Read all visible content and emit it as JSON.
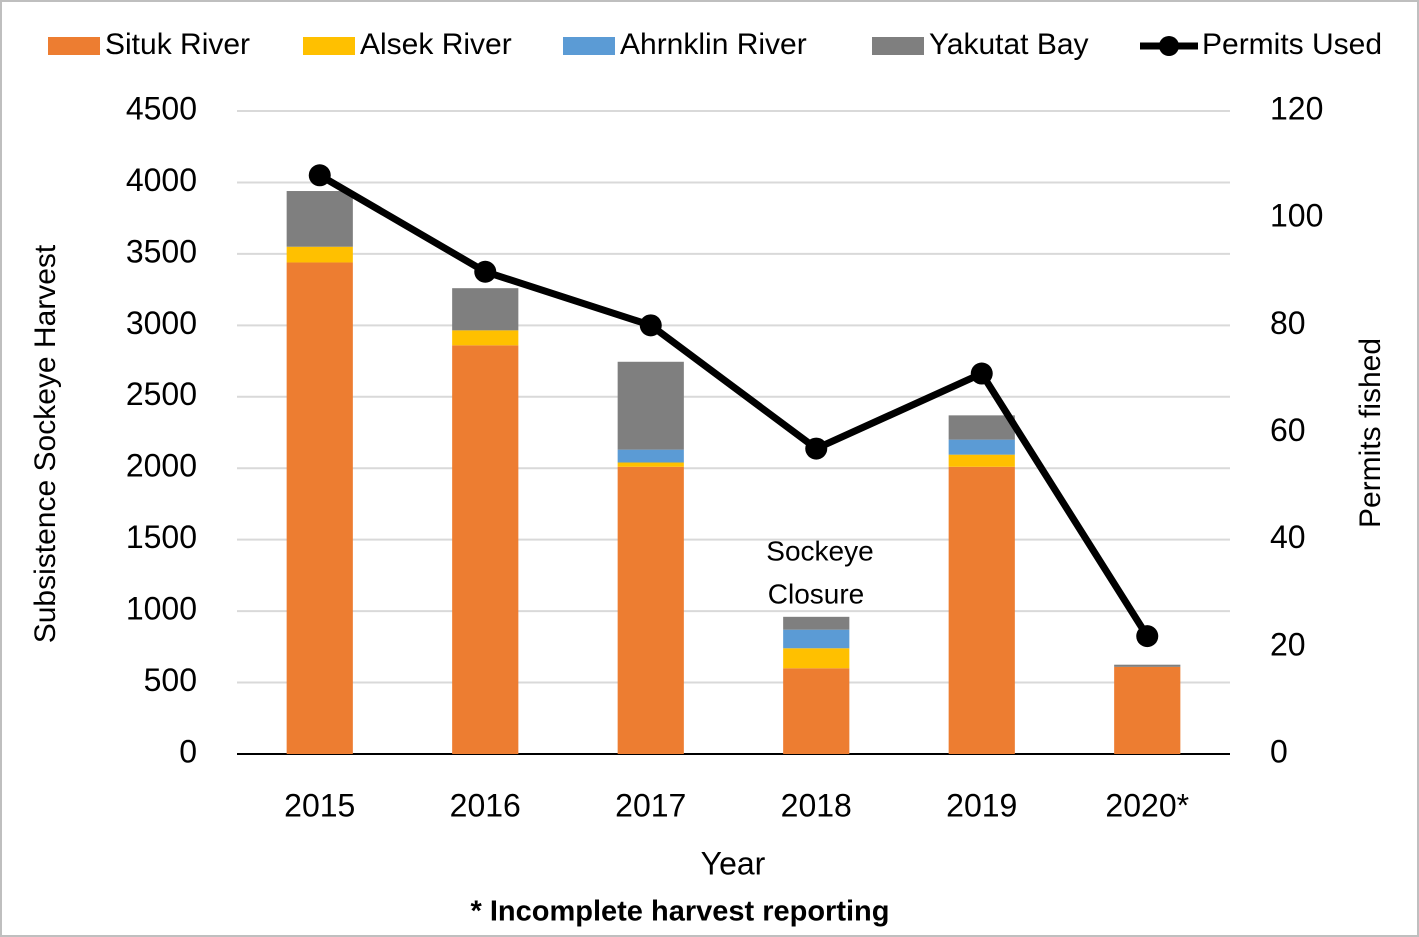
{
  "chart_data": {
    "type": "bar",
    "stacked": true,
    "categories": [
      "2015",
      "2016",
      "2017",
      "2018",
      "2019",
      "2020*"
    ],
    "series": [
      {
        "name": "Situk River",
        "color": "#ed7d31",
        "values": [
          3440,
          2860,
          2010,
          600,
          2010,
          610
        ]
      },
      {
        "name": "Alsek River",
        "color": "#ffc000",
        "values": [
          110,
          105,
          30,
          140,
          85,
          0
        ]
      },
      {
        "name": "Ahrnklin River",
        "color": "#5b9bd5",
        "values": [
          0,
          0,
          90,
          130,
          105,
          0
        ]
      },
      {
        "name": "Yakutat Bay",
        "color": "#7f7f7f",
        "values": [
          390,
          295,
          615,
          90,
          170,
          15
        ]
      },
      {
        "name": "Permits Used",
        "type": "line",
        "axis": "y2",
        "color": "#000000",
        "values": [
          108,
          90,
          80,
          57,
          71,
          22
        ]
      }
    ],
    "xlabel": "Year",
    "ylabel": "Subsistence Sockeye Harvest",
    "y2label": "Permits fished",
    "ylim": [
      0,
      4500
    ],
    "yticks": [
      0,
      500,
      1000,
      1500,
      2000,
      2500,
      3000,
      3500,
      4000,
      4500
    ],
    "y2lim": [
      0,
      120
    ],
    "y2ticks": [
      0,
      20,
      40,
      60,
      80,
      100,
      120
    ],
    "grid": true,
    "legend": "top",
    "annotation": [
      "Sockeye",
      "Closure"
    ],
    "note": "* Incomplete harvest reporting"
  }
}
